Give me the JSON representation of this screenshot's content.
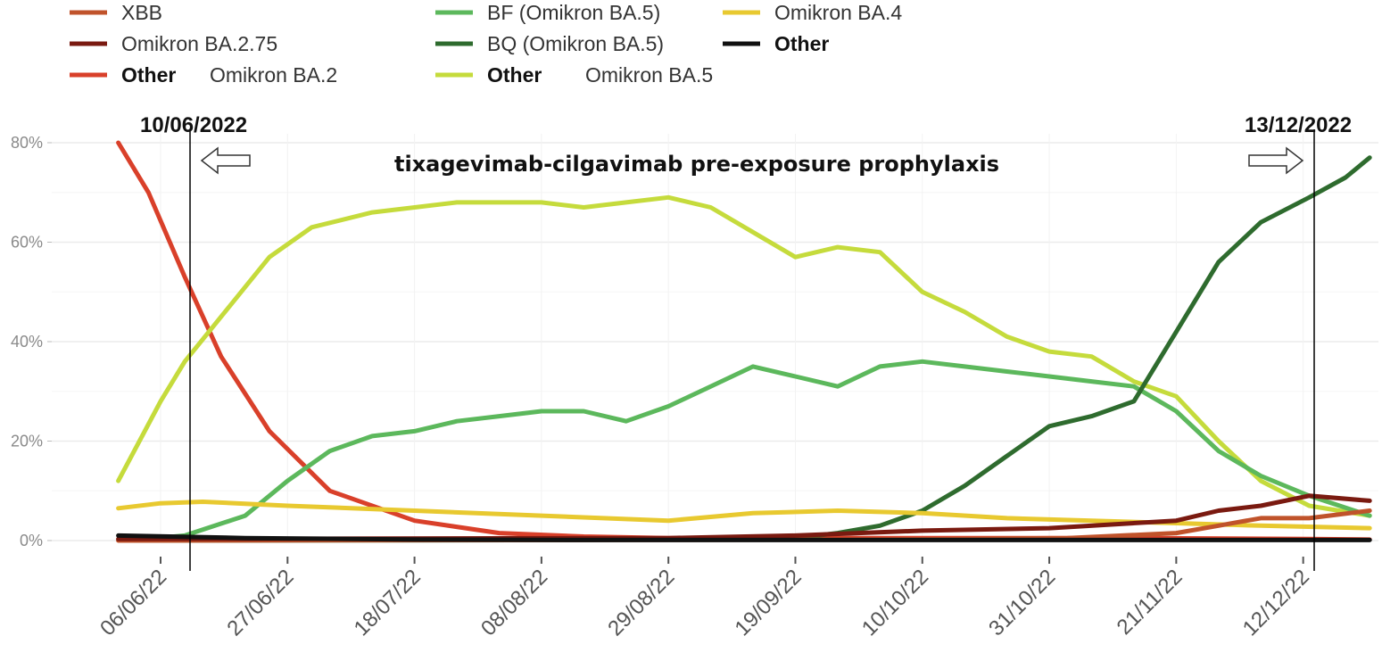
{
  "chart_data": {
    "type": "line",
    "ylim": [
      0,
      80
    ],
    "y_ticks": [
      "0%",
      "20%",
      "40%",
      "60%",
      "80%"
    ],
    "x_ticks": [
      "06/06/22",
      "27/06/22",
      "18/07/22",
      "08/08/22",
      "29/08/22",
      "19/09/22",
      "10/10/22",
      "31/10/22",
      "21/11/22",
      "12/12/22"
    ],
    "x_range_days": [
      -11,
      200
    ],
    "grid": true,
    "legend_position": "top",
    "legend": [
      {
        "label": "XBB",
        "color": "#c0532b"
      },
      {
        "label": "Omikron BA.2.75",
        "color": "#7a1a10"
      },
      {
        "label": "Other",
        "sub": "Omikron BA.2",
        "color": "#d9402a"
      },
      {
        "label": "BF (Omikron BA.5)",
        "color": "#5cb85c"
      },
      {
        "label": "BQ (Omikron BA.5)",
        "color": "#2e6b2e"
      },
      {
        "label": "Other",
        "sub": "Omikron BA.5",
        "color": "#c5db3c"
      },
      {
        "label": "Omikron BA.4",
        "color": "#e8c930"
      },
      {
        "label": "Other",
        "color": "#111111"
      }
    ],
    "annotations": {
      "start_date": "10/06/2022",
      "end_date": "13/12/2022",
      "title": "tixagevimab-cilgavimab pre-exposure prophylaxis",
      "start_day": 4,
      "end_day": 190
    },
    "series": [
      {
        "name": "Other Omikron BA.2",
        "color": "#d9402a",
        "x": [
          -7,
          -2,
          4,
          10,
          18,
          28,
          42,
          56,
          70,
          84,
          100,
          130,
          160,
          190,
          200
        ],
        "y": [
          80,
          70,
          53,
          37,
          22,
          10,
          4,
          1.5,
          0.8,
          0.5,
          0.5,
          0.5,
          0.5,
          0.3,
          0.2
        ]
      },
      {
        "name": "Other Omikron BA.5",
        "color": "#c5db3c",
        "x": [
          -7,
          0,
          4,
          10,
          18,
          25,
          35,
          49,
          63,
          70,
          77,
          84,
          91,
          98,
          105,
          112,
          119,
          126,
          133,
          140,
          147,
          154,
          161,
          168,
          175,
          182,
          190,
          200
        ],
        "y": [
          12,
          28,
          36,
          45,
          57,
          63,
          66,
          68,
          68,
          67,
          68,
          69,
          67,
          62,
          57,
          59,
          58,
          50,
          46,
          41,
          38,
          37,
          32,
          29,
          20,
          12,
          7,
          5
        ]
      },
      {
        "name": "BF (Omikron BA.5)",
        "color": "#5cb85c",
        "x": [
          -5,
          4,
          14,
          21,
          28,
          35,
          42,
          49,
          56,
          63,
          70,
          77,
          84,
          91,
          98,
          105,
          112,
          119,
          126,
          133,
          140,
          147,
          154,
          161,
          168,
          175,
          182,
          190,
          200
        ],
        "y": [
          0,
          1,
          5,
          12,
          18,
          21,
          22,
          24,
          25,
          26,
          26,
          24,
          27,
          31,
          35,
          33,
          31,
          35,
          36,
          35,
          34,
          33,
          32,
          31,
          26,
          18,
          13,
          9,
          5
        ]
      },
      {
        "name": "BQ (Omikron BA.5)",
        "color": "#2e6b2e",
        "x": [
          -5,
          70,
          105,
          112,
          119,
          126,
          133,
          140,
          147,
          154,
          161,
          168,
          175,
          182,
          190,
          196,
          200
        ],
        "y": [
          0,
          0.1,
          0.5,
          1.5,
          3,
          6,
          11,
          17,
          23,
          25,
          28,
          42,
          56,
          64,
          69,
          73,
          77
        ]
      },
      {
        "name": "Omikron BA.4",
        "color": "#e8c930",
        "x": [
          -7,
          0,
          7,
          21,
          42,
          63,
          84,
          98,
          112,
          126,
          140,
          154,
          168,
          182,
          200
        ],
        "y": [
          6.5,
          7.5,
          7.8,
          7,
          6,
          5,
          4,
          5.5,
          6,
          5.5,
          4.5,
          4,
          3.5,
          3,
          2.5
        ]
      },
      {
        "name": "XBB",
        "color": "#c0532b",
        "x": [
          -7,
          120,
          150,
          168,
          175,
          182,
          190,
          200
        ],
        "y": [
          0,
          0.2,
          0.5,
          1.5,
          3,
          4.5,
          4.5,
          6
        ]
      },
      {
        "name": "Omikron BA.2.75",
        "color": "#7a1a10",
        "x": [
          -7,
          84,
          105,
          126,
          147,
          168,
          175,
          182,
          190,
          200
        ],
        "y": [
          0.3,
          0.5,
          1,
          2,
          2.5,
          4,
          6,
          7,
          9,
          8
        ]
      },
      {
        "name": "Other",
        "color": "#111111",
        "x": [
          -7,
          14,
          42,
          70,
          100,
          140,
          200
        ],
        "y": [
          1,
          0.5,
          0.2,
          0.1,
          0.1,
          0.1,
          0.1
        ]
      }
    ]
  }
}
